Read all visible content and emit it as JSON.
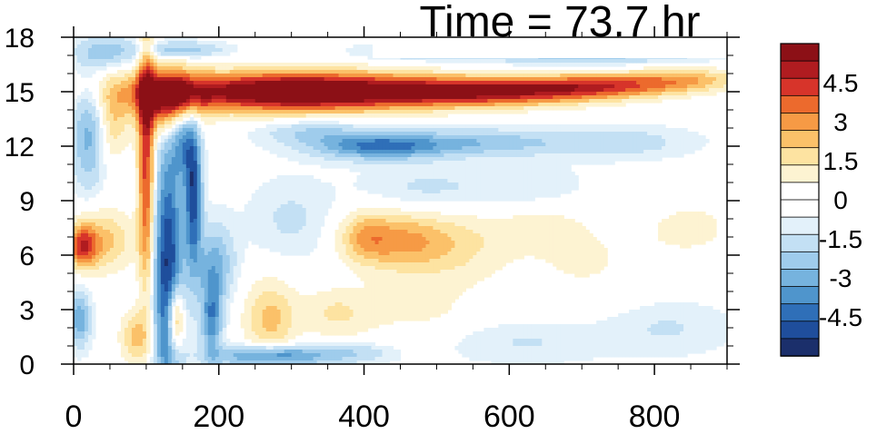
{
  "chart_data": {
    "type": "heatmap",
    "title": "Time = 73.7 hr",
    "xlabel": "",
    "ylabel": "",
    "xlim": [
      0,
      900
    ],
    "ylim": [
      0,
      18
    ],
    "x_ticks": [
      0,
      200,
      400,
      600,
      800
    ],
    "x_tick_labels": [
      "0",
      "200",
      "400",
      "600",
      "800"
    ],
    "y_ticks": [
      0,
      3,
      6,
      9,
      12,
      15,
      18
    ],
    "y_tick_labels": [
      "0",
      "3",
      "6",
      "9",
      "12",
      "15",
      "18"
    ],
    "colorbar": {
      "placement": "right",
      "min": -6,
      "max": 6,
      "levels": [
        -6,
        -5.25,
        -4.5,
        -3.75,
        -3,
        -2.25,
        -1.5,
        -0.75,
        -0.25,
        0.25,
        0.75,
        1.5,
        2.25,
        3,
        3.75,
        4.5,
        5.25,
        6
      ],
      "colors": [
        "#1b2f6b",
        "#1f4e9c",
        "#2f6fb8",
        "#4f95cc",
        "#76b3de",
        "#9fccec",
        "#c3e0f4",
        "#e3f1fa",
        "#ffffff",
        "#ffffff",
        "#fdf3d2",
        "#fde3a1",
        "#fbc169",
        "#f69a45",
        "#ec6a2d",
        "#d7342a",
        "#b01c20",
        "#8c1016"
      ],
      "tick_values": [
        4.5,
        3,
        1.5,
        0,
        -1.5,
        -3,
        -4.5
      ],
      "tick_labels": [
        "4.5",
        "3",
        "1.5",
        "0",
        "-1.5",
        "-3",
        "-4.5"
      ]
    },
    "features": [
      {
        "x": 300,
        "y": 15.0,
        "sx": 130,
        "sy": 0.75,
        "v": 8
      },
      {
        "x": 560,
        "y": 15.0,
        "sx": 110,
        "sy": 0.55,
        "v": 5.5
      },
      {
        "x": 720,
        "y": 15.3,
        "sx": 80,
        "sy": 0.45,
        "v": 3.8
      },
      {
        "x": 840,
        "y": 15.7,
        "sx": 60,
        "sy": 0.45,
        "v": 2.5
      },
      {
        "x": 130,
        "y": 14.6,
        "sx": 30,
        "sy": 1.2,
        "v": 6
      },
      {
        "x": 100,
        "y": 11.0,
        "sx": 8,
        "sy": 5.0,
        "v": 5
      },
      {
        "x": 130,
        "y": 5.0,
        "sx": 14,
        "sy": 5.0,
        "v": -5.5
      },
      {
        "x": 165,
        "y": 9.5,
        "sx": 8,
        "sy": 3.0,
        "v": -5
      },
      {
        "x": 150,
        "y": 12.5,
        "sx": 10,
        "sy": 1.5,
        "v": -3
      },
      {
        "x": 140,
        "y": 2.5,
        "sx": 8,
        "sy": 1.3,
        "v": 5
      },
      {
        "x": 190,
        "y": 2.5,
        "sx": 10,
        "sy": 1.5,
        "v": -3.5
      },
      {
        "x": 195,
        "y": 5.5,
        "sx": 18,
        "sy": 1.5,
        "v": -2.5
      },
      {
        "x": 270,
        "y": 0.45,
        "sx": 50,
        "sy": 0.4,
        "v": -4
      },
      {
        "x": 12,
        "y": 6.5,
        "sx": 14,
        "sy": 0.8,
        "v": 4
      },
      {
        "x": 40,
        "y": 6.8,
        "sx": 30,
        "sy": 1.2,
        "v": 2.5
      },
      {
        "x": 8,
        "y": 2.5,
        "sx": 10,
        "sy": 1.0,
        "v": -3
      },
      {
        "x": 20,
        "y": 12.5,
        "sx": 15,
        "sy": 2.0,
        "v": -2.5
      },
      {
        "x": 55,
        "y": 13.5,
        "sx": 15,
        "sy": 1.5,
        "v": 2
      },
      {
        "x": 45,
        "y": 17.2,
        "sx": 30,
        "sy": 0.6,
        "v": -2
      },
      {
        "x": 85,
        "y": 1.5,
        "sx": 15,
        "sy": 1.0,
        "v": 2.5
      },
      {
        "x": 270,
        "y": 2.5,
        "sx": 25,
        "sy": 1.5,
        "v": 2.5
      },
      {
        "x": 420,
        "y": 12.0,
        "sx": 60,
        "sy": 0.5,
        "v": -3.8
      },
      {
        "x": 560,
        "y": 12.2,
        "sx": 80,
        "sy": 0.5,
        "v": -2
      },
      {
        "x": 750,
        "y": 12.2,
        "sx": 70,
        "sy": 0.6,
        "v": -1.2
      },
      {
        "x": 330,
        "y": 12.8,
        "sx": 50,
        "sy": 0.5,
        "v": -1.5
      },
      {
        "x": 450,
        "y": 6.8,
        "sx": 45,
        "sy": 1.2,
        "v": 2.8
      },
      {
        "x": 400,
        "y": 7.0,
        "sx": 25,
        "sy": 1.0,
        "v": 2
      },
      {
        "x": 530,
        "y": 6.5,
        "sx": 50,
        "sy": 1.5,
        "v": 1.5
      },
      {
        "x": 640,
        "y": 7.8,
        "sx": 50,
        "sy": 1.0,
        "v": 1.0
      },
      {
        "x": 850,
        "y": 7.5,
        "sx": 60,
        "sy": 1.5,
        "v": 0.9
      },
      {
        "x": 700,
        "y": 5.5,
        "sx": 60,
        "sy": 1.5,
        "v": 0.8
      },
      {
        "x": 470,
        "y": 3.0,
        "sx": 60,
        "sy": 1.2,
        "v": 0.9
      },
      {
        "x": 360,
        "y": 2.8,
        "sx": 35,
        "sy": 1.0,
        "v": 1.5
      },
      {
        "x": 300,
        "y": 8.0,
        "sx": 40,
        "sy": 1.5,
        "v": -0.9
      },
      {
        "x": 480,
        "y": 9.5,
        "sx": 60,
        "sy": 1.0,
        "v": -1.0
      },
      {
        "x": 620,
        "y": 9.5,
        "sx": 60,
        "sy": 1.0,
        "v": -0.8
      },
      {
        "x": 700,
        "y": 17.0,
        "sx": 120,
        "sy": 0.35,
        "v": -1.8
      },
      {
        "x": 460,
        "y": 17.2,
        "sx": 50,
        "sy": 0.3,
        "v": -1.2
      },
      {
        "x": 150,
        "y": 17.3,
        "sx": 40,
        "sy": 0.3,
        "v": -2
      },
      {
        "x": 620,
        "y": 1.2,
        "sx": 80,
        "sy": 0.8,
        "v": -0.8
      },
      {
        "x": 820,
        "y": 2.0,
        "sx": 60,
        "sy": 1.0,
        "v": -0.8
      },
      {
        "x": 380,
        "y": 0.6,
        "sx": 40,
        "sy": 0.4,
        "v": -1.5
      }
    ]
  }
}
